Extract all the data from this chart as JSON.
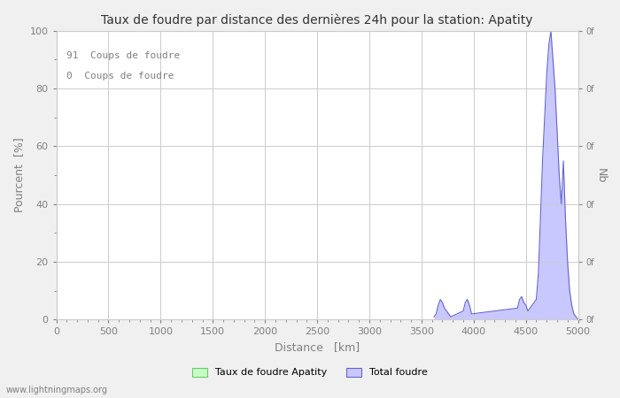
{
  "title": "Taux de foudre par distance des dernières 24h pour la station: Apatity",
  "xlabel": "Distance   [km]",
  "ylabel_left": "Pourcent  [%]",
  "ylabel_right": "Nb",
  "annotation_line1": "91  Coups de foudre",
  "annotation_line2": "0  Coups de foudre",
  "xlim": [
    0,
    5000
  ],
  "ylim_left": [
    0,
    100
  ],
  "xticks": [
    0,
    500,
    1000,
    1500,
    2000,
    2500,
    3000,
    3500,
    4000,
    4500,
    5000
  ],
  "yticks_left": [
    0,
    20,
    40,
    60,
    80,
    100
  ],
  "yticks_right_labels": [
    "0f",
    "0f",
    "0f",
    "0f",
    "0f",
    "0f"
  ],
  "right_tick_positions": [
    0,
    20,
    40,
    60,
    80,
    100
  ],
  "legend_label_green": "Taux de foudre Apatity",
  "legend_label_blue": "Total foudre",
  "watermark": "www.lightningmaps.org",
  "bg_color": "#f0f0f0",
  "plot_bg_color": "#ffffff",
  "grid_color": "#cccccc",
  "blue_fill_color": "#c8c8ff",
  "blue_line_color": "#6666cc",
  "green_fill_color": "#c8ffc8",
  "green_line_color": "#66cc66",
  "total_foudre_x": [
    3620,
    3640,
    3660,
    3680,
    3700,
    3720,
    3740,
    3760,
    3780,
    3900,
    3920,
    3940,
    3960,
    3980,
    4420,
    4440,
    4460,
    4480,
    4500,
    4520,
    4600,
    4620,
    4640,
    4660,
    4680,
    4700,
    4720,
    4740,
    4760,
    4780,
    4800,
    4820,
    4840,
    4860,
    4880,
    4900,
    4920,
    4940,
    4960,
    4980,
    5000
  ],
  "total_foudre_y": [
    1,
    2,
    5,
    7,
    6,
    4,
    3,
    2,
    1,
    3,
    6,
    7,
    5,
    2,
    4,
    7,
    8,
    6,
    5,
    3,
    7,
    16,
    35,
    55,
    70,
    85,
    95,
    100,
    90,
    80,
    65,
    50,
    40,
    55,
    35,
    20,
    10,
    5,
    2,
    1,
    0
  ]
}
